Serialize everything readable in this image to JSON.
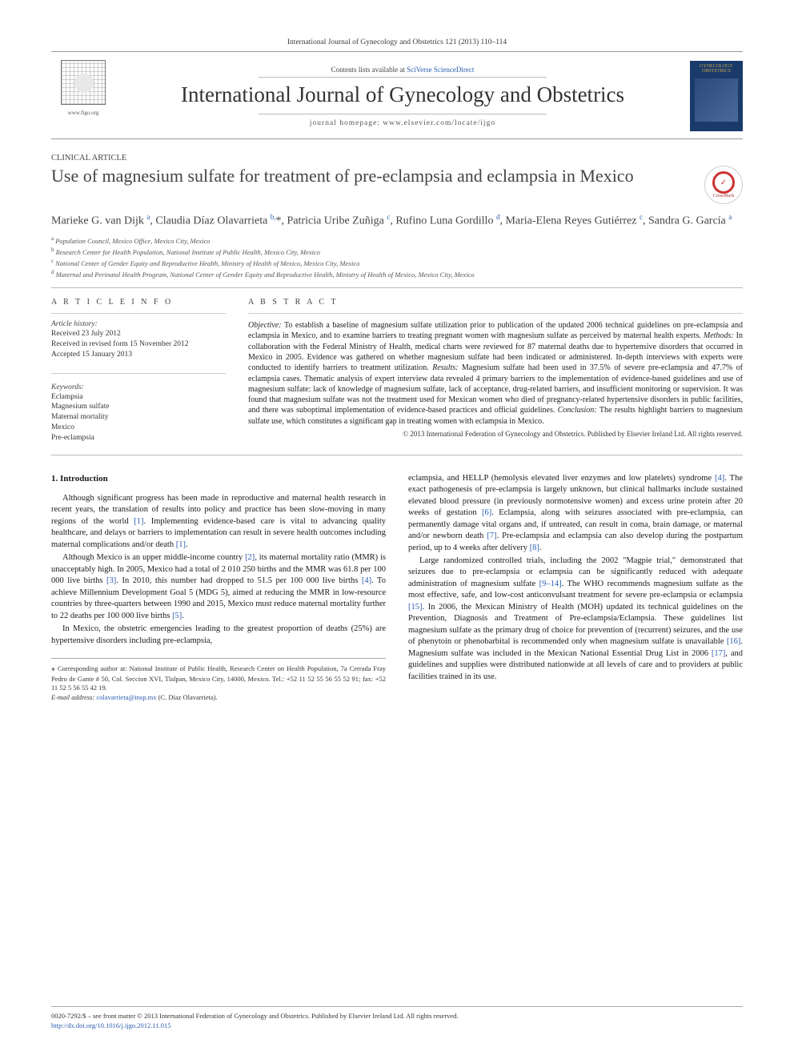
{
  "top_citation": "International Journal of Gynecology and Obstetrics 121 (2013) 110–114",
  "masthead": {
    "contents_prefix": "Contents lists available at ",
    "contents_link": "SciVerse ScienceDirect",
    "journal_title": "International Journal of Gynecology and Obstetrics",
    "homepage_label": "journal homepage: ",
    "homepage_url": "www.elsevier.com/locate/ijgo",
    "figo_url": "www.figo.org",
    "cover_text": "GYNECOLOGY OBSTETRICS"
  },
  "article": {
    "section_label": "CLINICAL ARTICLE",
    "title": "Use of magnesium sulfate for treatment of pre-eclampsia and eclampsia in Mexico",
    "crossmark_label": "CrossMark",
    "authors_html": "Marieke G. van Dijk <sup>a</sup>, Claudia Díaz Olavarrieta <sup>b,</sup>*, Patricia Uribe Zuñiga <sup>c</sup>, Rufino Luna Gordillo <sup>d</sup>, Maria-Elena Reyes Gutiérrez <sup>c</sup>, Sandra G. García <sup>a</sup>",
    "affiliations": [
      "Population Council, Mexico Office, Mexico City, Mexico",
      "Research Center for Health Population, National Institute of Public Health, Mexico City, Mexico",
      "National Center of Gender Equity and Reproductive Health, Ministry of Health of Mexico, Mexico City, Mexico",
      "Maternal and Perinatal Health Program, National Center of Gender Equity and Reproductive Health, Ministry of Health of Mexico, Mexico City, Mexico"
    ],
    "aff_markers": [
      "a",
      "b",
      "c",
      "d"
    ]
  },
  "article_info": {
    "heading": "A R T I C L E   I N F O",
    "history_label": "Article history:",
    "received": "Received 23 July 2012",
    "revised": "Received in revised form 15 November 2012",
    "accepted": "Accepted 15 January 2013",
    "keywords_label": "Keywords:",
    "keywords": [
      "Eclampsia",
      "Magnesium sulfate",
      "Maternal mortality",
      "Mexico",
      "Pre-eclampsia"
    ]
  },
  "abstract": {
    "heading": "A B S T R A C T",
    "objective_label": "Objective:",
    "objective": " To establish a baseline of magnesium sulfate utilization prior to publication of the updated 2006 technical guidelines on pre-eclampsia and eclampsia in Mexico, and to examine barriers to treating pregnant women with magnesium sulfate as perceived by maternal health experts. ",
    "methods_label": "Methods:",
    "methods": " In collaboration with the Federal Ministry of Health, medical charts were reviewed for 87 maternal deaths due to hypertensive disorders that occurred in Mexico in 2005. Evidence was gathered on whether magnesium sulfate had been indicated or administered. In-depth interviews with experts were conducted to identify barriers to treatment utilization. ",
    "results_label": "Results:",
    "results": " Magnesium sulfate had been used in 37.5% of severe pre-eclampsia and 47.7% of eclampsia cases. Thematic analysis of expert interview data revealed 4 primary barriers to the implementation of evidence-based guidelines and use of magnesium sulfate: lack of knowledge of magnesium sulfate, lack of acceptance, drug-related barriers, and insufficient monitoring or supervision. It was found that magnesium sulfate was not the treatment used for Mexican women who died of pregnancy-related hypertensive disorders in public facilities, and there was suboptimal implementation of evidence-based practices and official guidelines. ",
    "conclusion_label": "Conclusion:",
    "conclusion": " The results highlight barriers to magnesium sulfate use, which constitutes a significant gap in treating women with eclampsia in Mexico.",
    "copyright": "© 2013 International Federation of Gynecology and Obstetrics. Published by Elsevier Ireland Ltd. All rights reserved."
  },
  "body": {
    "intro_heading": "1. Introduction",
    "p1": "Although significant progress has been made in reproductive and maternal health research in recent years, the translation of results into policy and practice has been slow-moving in many regions of the world [1]. Implementing evidence-based care is vital to advancing quality healthcare, and delays or barriers to implementation can result in severe health outcomes including maternal complications and/or death [1].",
    "p2": "Although Mexico is an upper middle-income country [2], its maternal mortality ratio (MMR) is unacceptably high. In 2005, Mexico had a total of 2 010 250 births and the MMR was 61.8 per 100 000 live births [3]. In 2010, this number had dropped to 51.5 per 100 000 live births [4]. To achieve Millennium Development Goal 5 (MDG 5), aimed at reducing the MMR in low-resource countries by three-quarters between 1990 and 2015, Mexico must reduce maternal mortality further to 22 deaths per 100 000 live births [5].",
    "p3": "In Mexico, the obstetric emergencies leading to the greatest proportion of deaths (25%) are hypertensive disorders including pre-eclampsia,",
    "p4": "eclampsia, and HELLP (hemolysis elevated liver enzymes and low platelets) syndrome [4]. The exact pathogenesis of pre-eclampsia is largely unknown, but clinical hallmarks include sustained elevated blood pressure (in previously normotensive women) and excess urine protein after 20 weeks of gestation [6]. Eclampsia, along with seizures associated with pre-eclampsia, can permanently damage vital organs and, if untreated, can result in coma, brain damage, or maternal and/or newborn death [7]. Pre-eclampsia and eclampsia can also develop during the postpartum period, up to 4 weeks after delivery [8].",
    "p5": "Large randomized controlled trials, including the 2002 \"Magpie trial,\" demonstrated that seizures due to pre-eclampsia or eclampsia can be significantly reduced with adequate administration of magnesium sulfate [9–14]. The WHO recommends magnesium sulfate as the most effective, safe, and low-cost anticonvulsant treatment for severe pre-eclampsia or eclampsia [15]. In 2006, the Mexican Ministry of Health (MOH) updated its technical guidelines on the Prevention, Diagnosis and Treatment of Pre-eclampsia/Eclampsia. These guidelines list magnesium sulfate as the primary drug of choice for prevention of (recurrent) seizures, and the use of phenytoin or phenobarbital is recommended only when magnesium sulfate is unavailable [16]. Magnesium sulfate was included in the Mexican National Essential Drug List in 2006 [17], and guidelines and supplies were distributed nationwide at all levels of care and to providers at public facilities trained in its use."
  },
  "correspondence": {
    "star": "⁎",
    "text": " Corresponding author at: National Institute of Public Health, Research Center on Health Population, 7a Cerrada Fray Pedro de Gante # 50, Col. Seccion XVI, Tlalpan, Mexico City, 14000, Mexico. Tel.: +52 11 52 55 56 55 52 91; fax: +52 11 52 5 56 55 42 19.",
    "email_label": "E-mail address: ",
    "email": "colavarrieta@insp.mx",
    "email_who": " (C. Díaz Olavarrieta)."
  },
  "footer": {
    "issn": "0020-7292/$ – see front matter © 2013 International Federation of Gynecology and Obstetrics. Published by Elsevier Ireland Ltd. All rights reserved.",
    "doi": "http://dx.doi.org/10.1016/j.ijgo.2012.11.015"
  },
  "colors": {
    "link": "#2a5db0",
    "rule": "#999999",
    "text": "#222222",
    "cover_bg": "#1a3a6a",
    "cover_accent": "#c9a74e",
    "crossmark": "#c33"
  }
}
